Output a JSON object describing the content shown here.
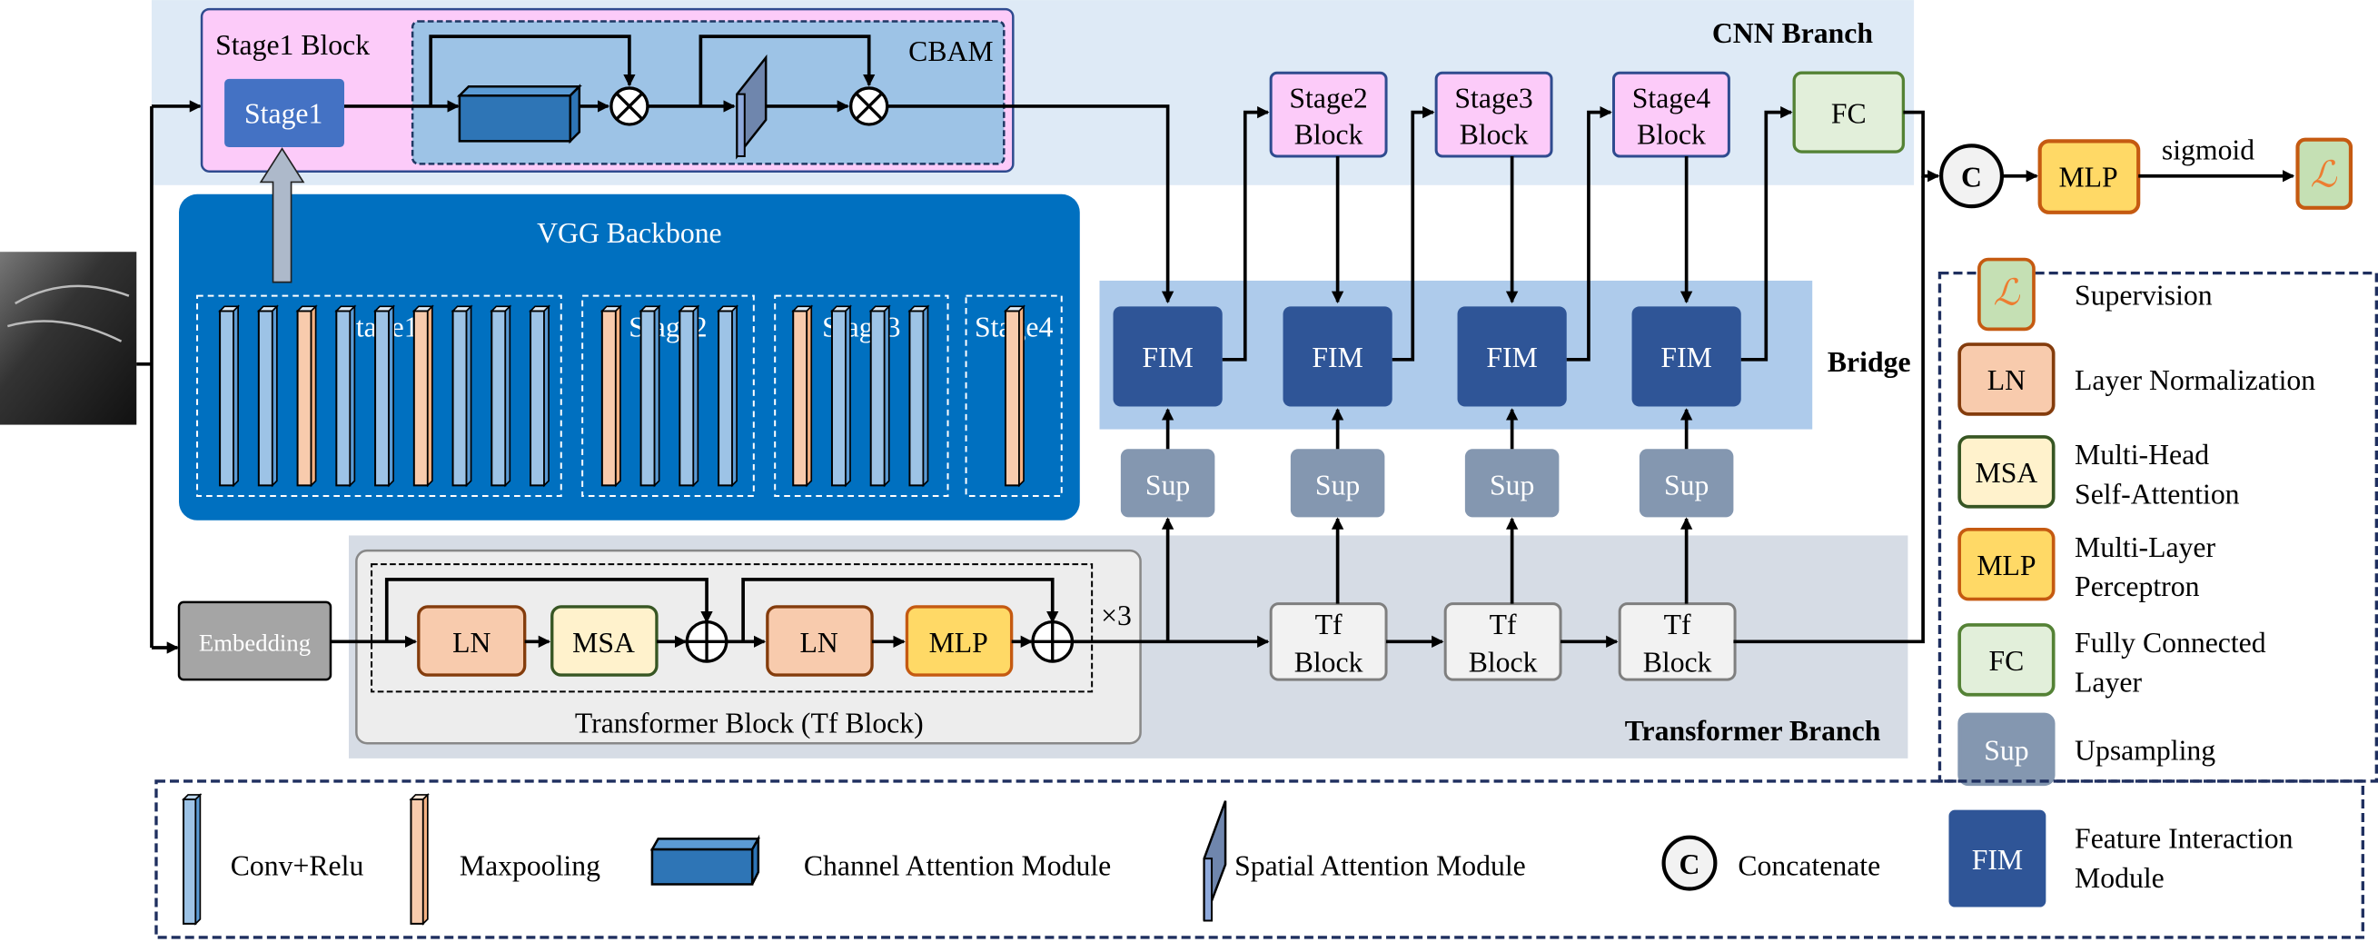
{
  "cnn_branch": {
    "label": "CNN Branch",
    "stage1_block": {
      "title": "Stage1 Block",
      "stage_label": "Stage1",
      "cbam_label": "CBAM"
    },
    "stage_blocks": [
      {
        "line1": "Stage2",
        "line2": "Block"
      },
      {
        "line1": "Stage3",
        "line2": "Block"
      },
      {
        "line1": "Stage4",
        "line2": "Block"
      }
    ],
    "fc_label": "FC"
  },
  "vgg_backbone": {
    "title": "VGG Backbone",
    "stages": [
      {
        "label": "Stage1",
        "layers": [
          "conv",
          "conv",
          "pool",
          "conv",
          "conv",
          "pool",
          "conv",
          "conv",
          "conv"
        ]
      },
      {
        "label": "Stage2",
        "layers": [
          "pool",
          "conv",
          "conv",
          "conv"
        ]
      },
      {
        "label": "Stage3",
        "layers": [
          "pool",
          "conv",
          "conv",
          "conv"
        ]
      },
      {
        "label": "Stage4",
        "layers": [
          "pool"
        ]
      }
    ]
  },
  "bridge": {
    "label": "Bridge",
    "fim_label": "FIM",
    "sup_label": "Sup"
  },
  "transformer_branch": {
    "label": "Transformer Branch",
    "embedding_label": "Embedding",
    "block_title": "Transformer Block (Tf  Block)",
    "ln_label": "LN",
    "msa_label": "MSA",
    "mlp_label": "MLP",
    "repeat_label": "×3",
    "tf_block": {
      "line1": "Tf",
      "line2": "Block"
    }
  },
  "head": {
    "concat_label": "C",
    "mlp_label": "MLP",
    "sigmoid_label": "sigmoid",
    "supervision_symbol": "ℒ"
  },
  "legend_right": [
    {
      "badge": "ℒ",
      "text1": "Supervision",
      "text2": ""
    },
    {
      "badge": "LN",
      "text1": "Layer Normalization",
      "text2": ""
    },
    {
      "badge": "MSA",
      "text1": "Multi-Head",
      "text2": "Self-Attention"
    },
    {
      "badge": "MLP",
      "text1": "Multi-Layer",
      "text2": "Perceptron"
    },
    {
      "badge": "FC",
      "text1": "Fully Connected",
      "text2": "Layer"
    },
    {
      "badge": "Sup",
      "text1": "Upsampling",
      "text2": ""
    }
  ],
  "legend_bottom": {
    "conv": "Conv+Relu",
    "pool": "Maxpooling",
    "channel": "Channel Attention Module",
    "spatial": "Spatial Attention Module",
    "concat_badge": "C",
    "concat": "Concatenate",
    "fim_badge": "FIM",
    "fim1": "Feature Interaction",
    "fim2": "Module"
  },
  "colors": {
    "cnn_bg": "#deeaf6",
    "stage_pink": "#fccbf9",
    "cbam_bg": "#9dc3e6",
    "vgg_bg": "#0070c0",
    "conv": "#9dc3e6",
    "pool": "#f8cbad",
    "fim": "#2f5597",
    "sup": "#8497b0",
    "bridge_bg": "#aecbeb",
    "tf_bg": "#d6dce5",
    "ln": "#f8cbad",
    "msa": "#fff2cc",
    "mlp": "#ffd966",
    "fc": "#e2efda",
    "supervision": "#c5e0b4"
  }
}
